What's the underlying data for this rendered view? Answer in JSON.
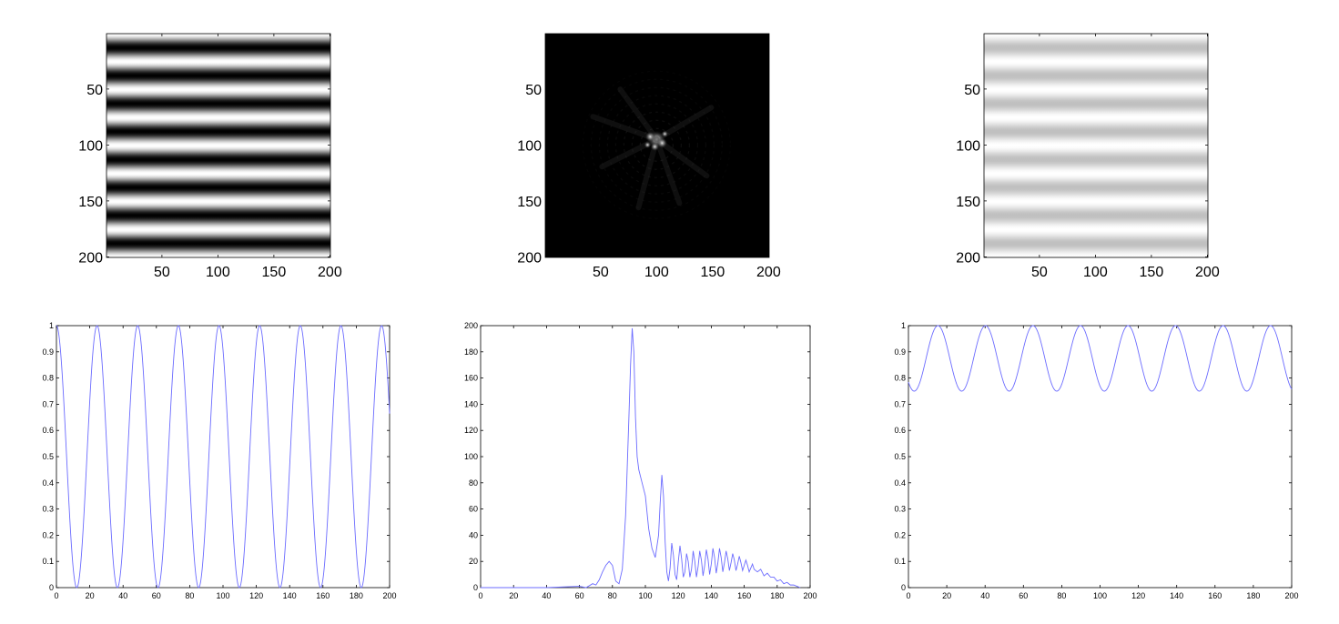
{
  "colors": {
    "line": "#6b6bff",
    "axis": "#000000",
    "background": "#ffffff"
  },
  "chart_data": [
    {
      "type": "heatmap",
      "description": "horizontal sinusoidal stripes, full contrast",
      "xlim": [
        0.5,
        200.5
      ],
      "ylim": [
        0.5,
        200.5
      ],
      "xticks": [
        50,
        100,
        150,
        200
      ],
      "xtick_labels": [
        "50",
        "100",
        "150",
        "200"
      ],
      "yticks": [
        50,
        100,
        150,
        200
      ],
      "ytick_labels": [
        "50",
        "100",
        "150",
        "200"
      ],
      "y_reversed": true,
      "pattern": {
        "orientation": "horizontal",
        "period": 25,
        "min": 0,
        "max": 1
      },
      "colormap": "gray"
    },
    {
      "type": "heatmap",
      "description": "2D Fourier magnitude, dark with bright central speckle",
      "xlim": [
        0.5,
        200.5
      ],
      "ylim": [
        0.5,
        200.5
      ],
      "xticks": [
        50,
        100,
        150,
        200
      ],
      "xtick_labels": [
        "50",
        "100",
        "150",
        "200"
      ],
      "yticks": [
        50,
        100,
        150,
        200
      ],
      "ytick_labels": [
        "50",
        "100",
        "150",
        "200"
      ],
      "y_reversed": true,
      "peak": {
        "x": 100,
        "y": 95
      },
      "colormap": "gray"
    },
    {
      "type": "heatmap",
      "description": "horizontal sinusoidal stripes, low contrast",
      "xlim": [
        0.5,
        200.5
      ],
      "ylim": [
        0.5,
        200.5
      ],
      "xticks": [
        50,
        100,
        150,
        200
      ],
      "xtick_labels": [
        "50",
        "100",
        "150",
        "200"
      ],
      "yticks": [
        50,
        100,
        150,
        200
      ],
      "ytick_labels": [
        "50",
        "100",
        "150",
        "200"
      ],
      "y_reversed": true,
      "pattern": {
        "orientation": "horizontal",
        "period": 25,
        "min": 0.75,
        "max": 1
      },
      "colormap": "gray"
    },
    {
      "type": "line",
      "xlim": [
        0,
        200
      ],
      "ylim": [
        0,
        1
      ],
      "xticks": [
        0,
        20,
        40,
        60,
        80,
        100,
        120,
        140,
        160,
        180,
        200
      ],
      "xtick_labels": [
        "0",
        "20",
        "40",
        "60",
        "80",
        "100",
        "120",
        "140",
        "160",
        "180",
        "200"
      ],
      "yticks": [
        0,
        0.1,
        0.2,
        0.3,
        0.4,
        0.5,
        0.6,
        0.7,
        0.8,
        0.9,
        1
      ],
      "ytick_labels": [
        "0",
        "0.1",
        "0.2",
        "0.3",
        "0.4",
        "0.5",
        "0.6",
        "0.7",
        "0.8",
        "0.9",
        "1"
      ],
      "series": [
        {
          "function": "0.5+0.5*cos(2*pi*x/24.4)",
          "x_range": [
            0,
            200
          ],
          "min": 0,
          "max": 1,
          "period": 24.4
        }
      ]
    },
    {
      "type": "line",
      "xlim": [
        0,
        200
      ],
      "ylim": [
        0,
        200
      ],
      "xticks": [
        0,
        20,
        40,
        60,
        80,
        100,
        120,
        140,
        160,
        180,
        200
      ],
      "xtick_labels": [
        "0",
        "20",
        "40",
        "60",
        "80",
        "100",
        "120",
        "140",
        "160",
        "180",
        "200"
      ],
      "yticks": [
        0,
        20,
        40,
        60,
        80,
        100,
        120,
        140,
        160,
        180,
        200
      ],
      "ytick_labels": [
        "0",
        "20",
        "40",
        "60",
        "80",
        "100",
        "120",
        "140",
        "160",
        "180",
        "200"
      ],
      "series": [
        {
          "x": [
            0,
            20,
            40,
            60,
            64,
            68,
            70,
            72,
            74,
            76,
            78,
            80,
            82,
            84,
            86,
            88,
            90,
            91,
            92,
            93,
            94,
            95,
            96,
            97,
            98,
            100,
            102,
            104,
            106,
            108,
            109,
            110,
            111,
            112,
            113,
            114,
            115,
            116,
            117,
            118,
            119,
            120,
            121,
            122,
            123,
            124,
            125,
            126,
            127,
            128,
            129,
            130,
            131,
            132,
            133,
            134,
            135,
            136,
            137,
            138,
            139,
            140,
            141,
            142,
            143,
            144,
            145,
            146,
            147,
            148,
            149,
            150,
            151,
            152,
            153,
            154,
            155,
            156,
            157,
            158,
            159,
            160,
            161,
            162,
            163,
            164,
            165,
            166,
            168,
            170,
            172,
            174,
            176,
            178,
            180,
            182,
            184,
            186,
            188,
            190,
            192,
            194
          ],
          "y": [
            0,
            0,
            0,
            1,
            0,
            3,
            2,
            6,
            12,
            17,
            20,
            17,
            5,
            3,
            14,
            55,
            130,
            170,
            198,
            180,
            130,
            100,
            90,
            85,
            80,
            70,
            45,
            30,
            23,
            40,
            65,
            86,
            70,
            35,
            12,
            5,
            15,
            34,
            25,
            10,
            6,
            20,
            32,
            22,
            8,
            12,
            26,
            20,
            8,
            14,
            28,
            20,
            8,
            16,
            28,
            21,
            9,
            17,
            29,
            22,
            10,
            18,
            30,
            23,
            11,
            19,
            30,
            23,
            12,
            19,
            28,
            22,
            13,
            19,
            26,
            21,
            13,
            18,
            24,
            19,
            13,
            17,
            21,
            17,
            12,
            15,
            18,
            14,
            12,
            14,
            9,
            11,
            8,
            8,
            5,
            6,
            3,
            4,
            2,
            2,
            1,
            0
          ]
        }
      ]
    },
    {
      "type": "line",
      "xlim": [
        0,
        200
      ],
      "ylim": [
        0,
        1
      ],
      "xticks": [
        0,
        20,
        40,
        60,
        80,
        100,
        120,
        140,
        160,
        180,
        200
      ],
      "xtick_labels": [
        "0",
        "20",
        "40",
        "60",
        "80",
        "100",
        "120",
        "140",
        "160",
        "180",
        "200"
      ],
      "yticks": [
        0,
        0.1,
        0.2,
        0.3,
        0.4,
        0.5,
        0.6,
        0.7,
        0.8,
        0.9,
        1
      ],
      "ytick_labels": [
        "0",
        "0.1",
        "0.2",
        "0.3",
        "0.4",
        "0.5",
        "0.6",
        "0.7",
        "0.8",
        "0.9",
        "1"
      ],
      "series": [
        {
          "function": "0.875-0.125*cos(2*pi*(x-3)/24.8)",
          "x_range": [
            0,
            200
          ],
          "min": 0.75,
          "max": 1,
          "period": 24.8
        }
      ]
    }
  ]
}
